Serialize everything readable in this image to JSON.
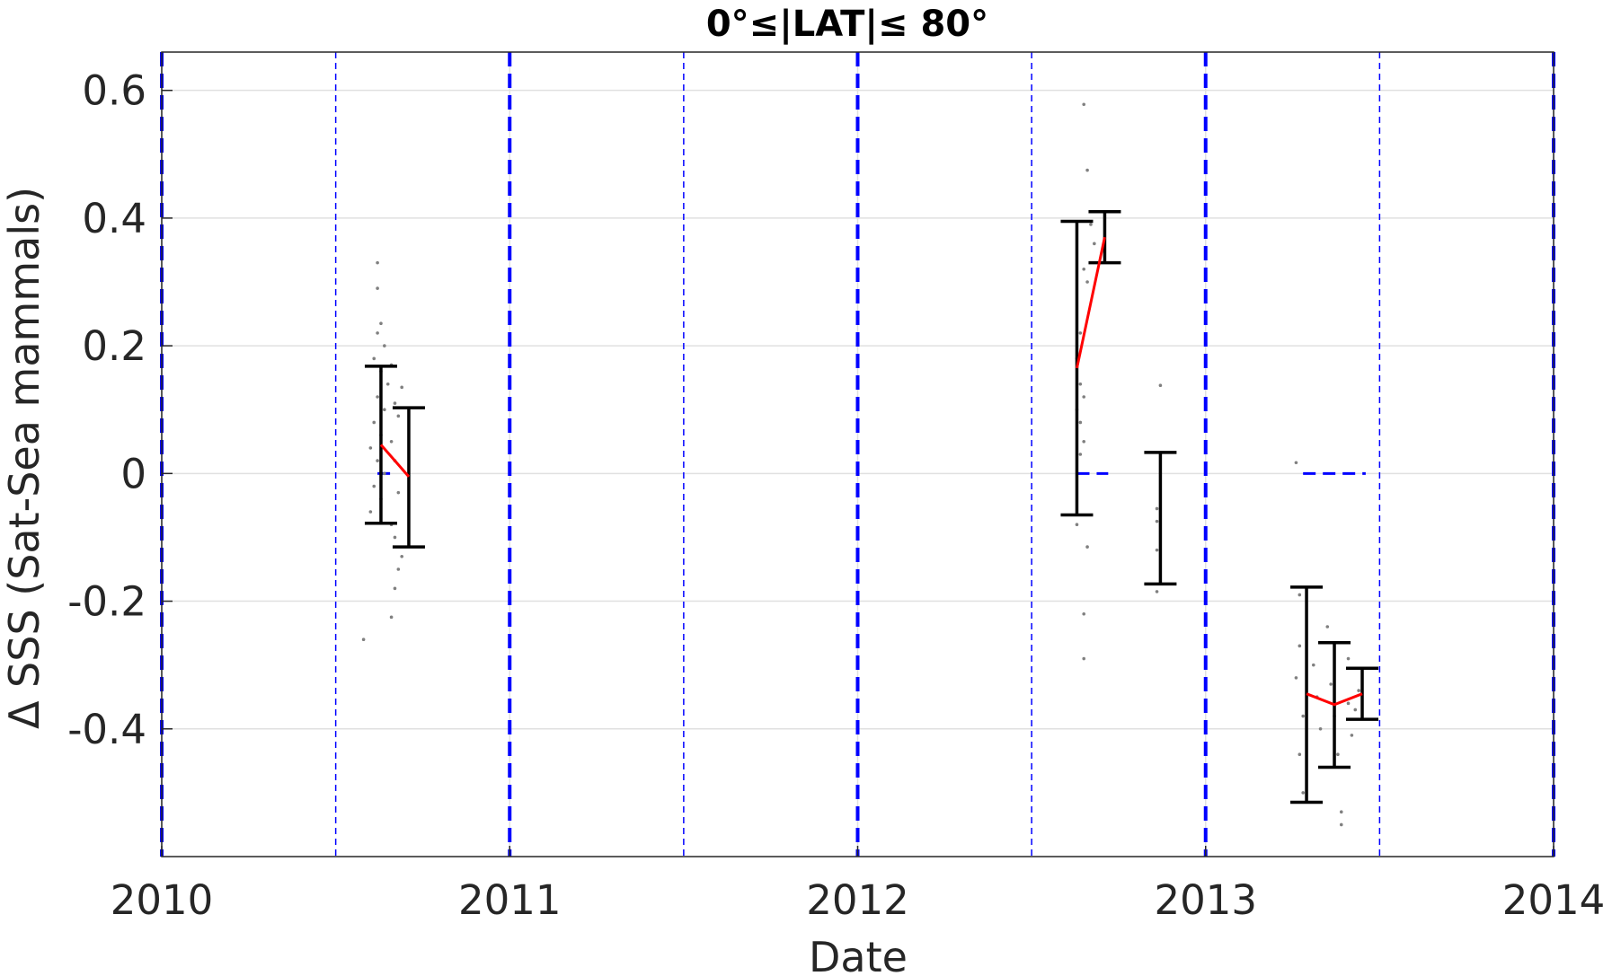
{
  "chart_data": {
    "type": "scatter",
    "title": "0°≤|LAT|≤ 80°",
    "xlabel": "Date",
    "ylabel": "Δ SSS (Sat-Sea mammals)",
    "xlim": [
      2010,
      2014
    ],
    "ylim": [
      -0.6,
      0.66
    ],
    "xticks": [
      2010,
      2011,
      2012,
      2013,
      2014
    ],
    "xtick_labels": [
      "2010",
      "2011",
      "2012",
      "2013",
      "2014"
    ],
    "yticks": [
      -0.4,
      -0.2,
      0,
      0.2,
      0.4,
      0.6
    ],
    "ytick_labels": [
      "-0.4",
      "-0.2",
      "0",
      "0.2",
      "0.4",
      "0.6"
    ],
    "grid": true,
    "colors": {
      "errorbar": "#000000",
      "mean_line": "#ff0000",
      "period_lines": "#0000ff",
      "scatter": "#808080",
      "grid": "#e0e0e0"
    },
    "vertical_lines_major": [
      2010,
      2011,
      2012,
      2013,
      2014
    ],
    "vertical_lines_minor": [
      2010.5,
      2011.5,
      2012.5,
      2013.5
    ],
    "zero_segments": [
      {
        "x": [
          2010.62,
          2010.66
        ],
        "y": 0
      },
      {
        "x": [
          2012.63,
          2012.72
        ],
        "y": 0
      },
      {
        "x": [
          2013.28,
          2013.46
        ],
        "y": 0
      }
    ],
    "errorbars": [
      {
        "x": 2010.63,
        "mean": 0.045,
        "low": -0.078,
        "high": 0.168
      },
      {
        "x": 2010.71,
        "mean": -0.005,
        "low": -0.115,
        "high": 0.103
      },
      {
        "x": 2012.63,
        "mean": 0.165,
        "low": -0.065,
        "high": 0.395
      },
      {
        "x": 2012.71,
        "mean": 0.37,
        "low": 0.33,
        "high": 0.41
      },
      {
        "x": 2012.87,
        "mean": -0.07,
        "low": -0.173,
        "high": 0.033
      },
      {
        "x": 2013.29,
        "mean": -0.345,
        "low": -0.515,
        "high": -0.178
      },
      {
        "x": 2013.37,
        "mean": -0.362,
        "low": -0.46,
        "high": -0.265
      },
      {
        "x": 2013.45,
        "mean": -0.345,
        "low": -0.385,
        "high": -0.305
      }
    ],
    "mean_lines": [
      {
        "x": [
          2010.63,
          2010.71
        ],
        "y": [
          0.045,
          -0.005
        ]
      },
      {
        "x": [
          2012.63,
          2012.71
        ],
        "y": [
          0.165,
          0.37
        ]
      },
      {
        "x": [
          2013.29,
          2013.37,
          2013.45
        ],
        "y": [
          -0.345,
          -0.362,
          -0.345
        ]
      }
    ],
    "points": [
      {
        "x": 2010.62,
        "y": 0.33
      },
      {
        "x": 2010.62,
        "y": 0.29
      },
      {
        "x": 2010.63,
        "y": 0.235
      },
      {
        "x": 2010.62,
        "y": 0.22
      },
      {
        "x": 2010.64,
        "y": 0.2
      },
      {
        "x": 2010.61,
        "y": 0.18
      },
      {
        "x": 2010.63,
        "y": 0.16
      },
      {
        "x": 2010.65,
        "y": 0.14
      },
      {
        "x": 2010.62,
        "y": 0.12
      },
      {
        "x": 2010.64,
        "y": 0.1
      },
      {
        "x": 2010.61,
        "y": 0.08
      },
      {
        "x": 2010.63,
        "y": 0.06
      },
      {
        "x": 2010.6,
        "y": 0.04
      },
      {
        "x": 2010.62,
        "y": 0.02
      },
      {
        "x": 2010.64,
        "y": 0.0
      },
      {
        "x": 2010.61,
        "y": -0.02
      },
      {
        "x": 2010.63,
        "y": -0.04
      },
      {
        "x": 2010.6,
        "y": -0.06
      },
      {
        "x": 2010.58,
        "y": -0.26
      },
      {
        "x": 2010.66,
        "y": 0.17
      },
      {
        "x": 2010.67,
        "y": 0.11
      },
      {
        "x": 2010.68,
        "y": 0.09
      },
      {
        "x": 2010.66,
        "y": 0.05
      },
      {
        "x": 2010.67,
        "y": 0.02
      },
      {
        "x": 2010.68,
        "y": -0.03
      },
      {
        "x": 2010.66,
        "y": -0.08
      },
      {
        "x": 2010.67,
        "y": -0.1
      },
      {
        "x": 2010.68,
        "y": -0.15
      },
      {
        "x": 2010.67,
        "y": -0.18
      },
      {
        "x": 2010.66,
        "y": -0.225
      },
      {
        "x": 2010.69,
        "y": 0.135
      },
      {
        "x": 2010.69,
        "y": -0.13
      },
      {
        "x": 2012.65,
        "y": 0.578
      },
      {
        "x": 2012.66,
        "y": 0.475
      },
      {
        "x": 2012.67,
        "y": 0.39
      },
      {
        "x": 2012.68,
        "y": 0.36
      },
      {
        "x": 2012.65,
        "y": 0.32
      },
      {
        "x": 2012.66,
        "y": 0.3
      },
      {
        "x": 2012.64,
        "y": 0.22
      },
      {
        "x": 2012.63,
        "y": 0.18
      },
      {
        "x": 2012.64,
        "y": 0.14
      },
      {
        "x": 2012.65,
        "y": 0.12
      },
      {
        "x": 2012.63,
        "y": 0.1
      },
      {
        "x": 2012.64,
        "y": 0.08
      },
      {
        "x": 2012.65,
        "y": 0.05
      },
      {
        "x": 2012.64,
        "y": 0.03
      },
      {
        "x": 2012.63,
        "y": -0.08
      },
      {
        "x": 2012.66,
        "y": -0.115
      },
      {
        "x": 2012.65,
        "y": -0.22
      },
      {
        "x": 2012.65,
        "y": -0.29
      },
      {
        "x": 2012.87,
        "y": 0.138
      },
      {
        "x": 2012.86,
        "y": -0.055
      },
      {
        "x": 2012.86,
        "y": -0.075
      },
      {
        "x": 2012.86,
        "y": -0.12
      },
      {
        "x": 2012.86,
        "y": -0.185
      },
      {
        "x": 2013.26,
        "y": 0.017
      },
      {
        "x": 2013.27,
        "y": -0.19
      },
      {
        "x": 2013.27,
        "y": -0.27
      },
      {
        "x": 2013.26,
        "y": -0.32
      },
      {
        "x": 2013.28,
        "y": -0.38
      },
      {
        "x": 2013.27,
        "y": -0.44
      },
      {
        "x": 2013.28,
        "y": -0.5
      },
      {
        "x": 2013.31,
        "y": -0.3
      },
      {
        "x": 2013.32,
        "y": -0.35
      },
      {
        "x": 2013.33,
        "y": -0.4
      },
      {
        "x": 2013.35,
        "y": -0.24
      },
      {
        "x": 2013.36,
        "y": -0.33
      },
      {
        "x": 2013.37,
        "y": -0.38
      },
      {
        "x": 2013.38,
        "y": -0.44
      },
      {
        "x": 2013.39,
        "y": -0.53
      },
      {
        "x": 2013.39,
        "y": -0.55
      },
      {
        "x": 2013.41,
        "y": -0.29
      },
      {
        "x": 2013.41,
        "y": -0.36
      },
      {
        "x": 2013.42,
        "y": -0.41
      },
      {
        "x": 2013.44,
        "y": -0.34
      },
      {
        "x": 2013.43,
        "y": -0.37
      }
    ]
  }
}
